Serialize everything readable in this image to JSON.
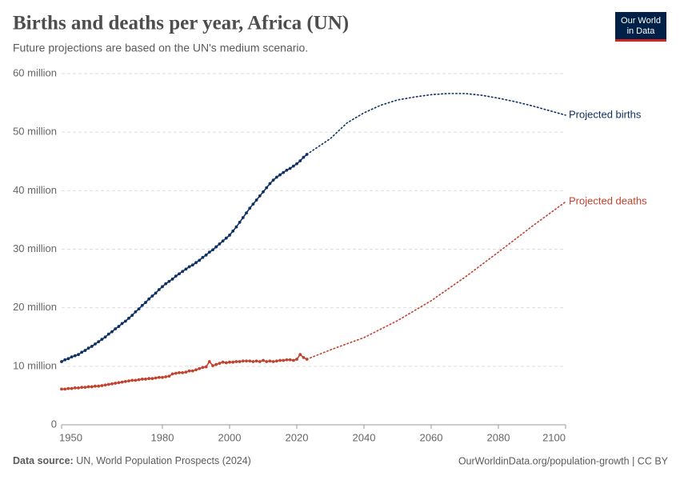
{
  "chart_data": {
    "type": "line",
    "title": "Births and deaths per year, Africa (UN)",
    "subtitle": "Future projections are based on the UN's medium scenario.",
    "logo": [
      "Our World",
      "in Data"
    ],
    "source_label": "Data source:",
    "source": "UN, World Population Prospects (2024)",
    "footer_right": "OurWorldinData.org/population-growth | CC BY",
    "xlim": [
      1950,
      2100
    ],
    "xticks": [
      1950,
      1980,
      2000,
      2020,
      2040,
      2060,
      2080,
      2100
    ],
    "ylim": [
      0,
      60
    ],
    "yticks": [
      0,
      {
        "value": 10,
        "label": "10 million"
      },
      {
        "value": 20,
        "label": "20 million"
      },
      {
        "value": 30,
        "label": "30 million"
      },
      {
        "value": 40,
        "label": "40 million"
      },
      {
        "value": 50,
        "label": "50 million"
      },
      {
        "value": 60,
        "label": "60 million"
      }
    ],
    "grid": true,
    "series": [
      {
        "color": "#0e3161",
        "style": "solid",
        "markers": true,
        "x": [
          1950,
          1951,
          1952,
          1953,
          1954,
          1955,
          1956,
          1957,
          1958,
          1959,
          1960,
          1961,
          1962,
          1963,
          1964,
          1965,
          1966,
          1967,
          1968,
          1969,
          1970,
          1971,
          1972,
          1973,
          1974,
          1975,
          1976,
          1977,
          1978,
          1979,
          1980,
          1981,
          1982,
          1983,
          1984,
          1985,
          1986,
          1987,
          1988,
          1989,
          1990,
          1991,
          1992,
          1993,
          1994,
          1995,
          1996,
          1997,
          1998,
          1999,
          2000,
          2001,
          2002,
          2003,
          2004,
          2005,
          2006,
          2007,
          2008,
          2009,
          2010,
          2011,
          2012,
          2013,
          2014,
          2015,
          2016,
          2017,
          2018,
          2019,
          2020,
          2021,
          2022,
          2023
        ],
        "values": [
          10.8,
          11.1,
          11.3,
          11.6,
          11.8,
          12.0,
          12.4,
          12.7,
          13.1,
          13.4,
          13.8,
          14.2,
          14.6,
          15.0,
          15.5,
          15.9,
          16.4,
          16.8,
          17.3,
          17.7,
          18.2,
          18.7,
          19.3,
          19.8,
          20.4,
          20.9,
          21.5,
          22.0,
          22.5,
          23.1,
          23.6,
          24.1,
          24.5,
          24.9,
          25.4,
          25.8,
          26.2,
          26.6,
          27.0,
          27.3,
          27.7,
          28.1,
          28.6,
          29.0,
          29.5,
          29.9,
          30.4,
          30.9,
          31.4,
          31.9,
          32.4,
          33.1,
          33.8,
          34.6,
          35.4,
          36.2,
          37.0,
          37.7,
          38.4,
          39.1,
          39.8,
          40.5,
          41.2,
          41.8,
          42.3,
          42.7,
          43.1,
          43.5,
          43.8,
          44.2,
          44.6,
          45.1,
          45.7,
          46.2
        ]
      },
      {
        "name": "Projected births",
        "color": "#0e3161",
        "style": "dotted",
        "markers": false,
        "x": [
          2023,
          2030,
          2035,
          2040,
          2045,
          2050,
          2055,
          2060,
          2065,
          2070,
          2075,
          2080,
          2085,
          2090,
          2095,
          2100
        ],
        "values": [
          46.2,
          48.9,
          51.6,
          53.3,
          54.6,
          55.5,
          56.0,
          56.4,
          56.6,
          56.6,
          56.3,
          55.8,
          55.2,
          54.5,
          53.7,
          52.9
        ]
      },
      {
        "color": "#c0432f",
        "style": "solid",
        "markers": true,
        "x": [
          1950,
          1951,
          1952,
          1953,
          1954,
          1955,
          1956,
          1957,
          1958,
          1959,
          1960,
          1961,
          1962,
          1963,
          1964,
          1965,
          1966,
          1967,
          1968,
          1969,
          1970,
          1971,
          1972,
          1973,
          1974,
          1975,
          1976,
          1977,
          1978,
          1979,
          1980,
          1981,
          1982,
          1983,
          1984,
          1985,
          1986,
          1987,
          1988,
          1989,
          1990,
          1991,
          1992,
          1993,
          1994,
          1995,
          1996,
          1997,
          1998,
          1999,
          2000,
          2001,
          2002,
          2003,
          2004,
          2005,
          2006,
          2007,
          2008,
          2009,
          2010,
          2011,
          2012,
          2013,
          2014,
          2015,
          2016,
          2017,
          2018,
          2019,
          2020,
          2021,
          2022,
          2023
        ],
        "values": [
          6.1,
          6.1,
          6.2,
          6.2,
          6.3,
          6.3,
          6.4,
          6.4,
          6.5,
          6.5,
          6.6,
          6.6,
          6.7,
          6.8,
          6.9,
          7.0,
          7.1,
          7.2,
          7.3,
          7.4,
          7.5,
          7.6,
          7.6,
          7.7,
          7.8,
          7.8,
          7.9,
          7.9,
          8.0,
          8.1,
          8.1,
          8.2,
          8.3,
          8.7,
          8.8,
          8.9,
          8.9,
          9.0,
          9.2,
          9.2,
          9.4,
          9.6,
          9.8,
          9.9,
          10.8,
          10.1,
          10.3,
          10.5,
          10.7,
          10.6,
          10.7,
          10.7,
          10.8,
          10.8,
          10.9,
          10.9,
          10.9,
          10.8,
          10.9,
          10.8,
          11.0,
          10.8,
          10.9,
          10.8,
          10.9,
          11.0,
          11.0,
          11.1,
          11.1,
          11.0,
          11.2,
          12.0,
          11.5,
          11.2
        ]
      },
      {
        "name": "Projected deaths",
        "color": "#c0432f",
        "style": "dotted",
        "markers": false,
        "x": [
          2023,
          2030,
          2040,
          2050,
          2060,
          2070,
          2080,
          2090,
          2100
        ],
        "values": [
          11.2,
          12.8,
          14.9,
          17.8,
          21.2,
          25.2,
          29.5,
          33.9,
          38.1
        ]
      }
    ]
  }
}
